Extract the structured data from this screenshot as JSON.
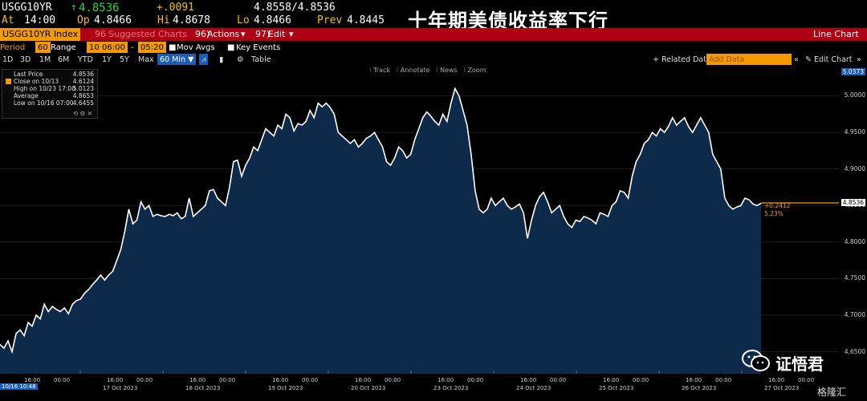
{
  "quote": {
    "symbol": "USGG10YR",
    "last": "4.8536",
    "change": "+.0091",
    "bid_ask": "4.8558/4.8536",
    "at_label": "At",
    "at_time": "14:00",
    "op_label": "Op",
    "open": "4.8466",
    "hi_label": "Hi",
    "high": "4.8678",
    "lo_label": "Lo",
    "low": "4.8466",
    "prev_label": "Prev",
    "prev": "4.8445"
  },
  "headline": "十年期美债收益率下行",
  "toolbar": {
    "index_label": "USGG10YR Index",
    "suggested": "Suggested Charts",
    "suggested_num": "96",
    "actions_num": "96)",
    "actions": "Actions",
    "edit_num": "97)",
    "edit": "Edit",
    "chart_type": "Line Chart"
  },
  "settings": {
    "period_label": "Period",
    "period_value": "60",
    "range_label": "Range",
    "range_value": "10",
    "time_from": "06:00",
    "time_to": "05:20",
    "mov_avgs": "Mov Avgs",
    "key_events": "Key Events"
  },
  "ranges": [
    "1D",
    "3D",
    "1M",
    "6M",
    "YTD",
    "1Y",
    "5Y",
    "Max"
  ],
  "interval": "60 Min",
  "table_label": "Table",
  "related_data": "+ Related Data",
  "add_data": "Add Data",
  "edit_chart": "Edit Chart",
  "chart_tools": [
    "Track",
    "Annotate",
    "News",
    "Zoom"
  ],
  "legend": [
    {
      "label": "Last Price",
      "value": "4.8536"
    },
    {
      "label": "Close on 10/13",
      "value": "4.6124"
    },
    {
      "label": "High on 10/23 17:00",
      "value": "5.0123"
    },
    {
      "label": "Average",
      "value": "4.8653"
    },
    {
      "label": "Low on 10/16 07:00",
      "value": "4.6455"
    }
  ],
  "last_price_tag": "4.8536",
  "top_tag": "5.0373",
  "change_annotation": "+0.2412",
  "change_pct": "5.23%",
  "cursor_date": "10/16 10:48",
  "watermark": "证悟君",
  "brand": "格隆汇",
  "chart_data": {
    "type": "area",
    "ylim": [
      4.62,
      5.04
    ],
    "yticks": [
      4.65,
      4.7,
      4.75,
      4.8,
      4.85,
      4.9,
      4.95,
      5.0
    ],
    "ytick_labels": [
      "4.6500",
      "4.7000",
      "4.7500",
      "4.8000",
      "4.8500",
      "4.9000",
      "4.9500",
      "5.0000"
    ],
    "date_labels": [
      "17 Oct 2023",
      "18 Oct 2023",
      "19 Oct 2023",
      "20 Oct 2023",
      "23 Oct 2023",
      "24 Oct 2023",
      "25 Oct 2023",
      "26 Oct 2023",
      "27 Oct 2023"
    ],
    "time_labels": [
      "16:00",
      "00:00",
      "16:00",
      "00:00",
      "16:00",
      "00:00",
      "16:00",
      "00:00",
      "16:00",
      "00:00",
      "16:00",
      "00:00",
      "16:00",
      "00:00",
      "16:00",
      "00:00",
      "16:00",
      "00:00",
      "16:00",
      "00:00"
    ],
    "values": [
      4.66,
      4.655,
      4.665,
      4.65,
      4.675,
      4.68,
      4.672,
      4.69,
      4.685,
      4.7,
      4.695,
      4.715,
      4.705,
      4.712,
      4.708,
      4.705,
      4.71,
      4.702,
      4.715,
      4.72,
      4.722,
      4.73,
      4.735,
      4.742,
      4.748,
      4.755,
      4.748,
      4.755,
      4.76,
      4.775,
      4.79,
      4.815,
      4.845,
      4.825,
      4.83,
      4.855,
      4.845,
      4.85,
      4.835,
      4.838,
      4.836,
      4.835,
      4.838,
      4.836,
      4.84,
      4.832,
      4.835,
      4.86,
      4.835,
      4.84,
      4.845,
      4.85,
      4.87,
      4.872,
      4.86,
      4.855,
      4.85,
      4.875,
      4.91,
      4.912,
      4.89,
      4.905,
      4.915,
      4.93,
      4.925,
      4.94,
      4.955,
      4.95,
      4.945,
      4.96,
      4.955,
      4.975,
      4.97,
      4.952,
      4.962,
      4.96,
      4.965,
      4.98,
      4.97,
      4.99,
      4.985,
      4.99,
      4.984,
      4.975,
      4.95,
      4.945,
      4.94,
      4.935,
      4.94,
      4.93,
      4.935,
      4.942,
      4.945,
      4.95,
      4.94,
      4.93,
      4.91,
      4.905,
      4.915,
      4.93,
      4.925,
      4.915,
      4.92,
      4.94,
      4.955,
      4.97,
      4.978,
      4.972,
      4.965,
      4.96,
      4.975,
      4.965,
      4.99,
      5.01,
      5.0,
      4.98,
      4.96,
      4.92,
      4.87,
      4.845,
      4.84,
      4.845,
      4.86,
      4.85,
      4.855,
      4.86,
      4.85,
      4.845,
      4.848,
      4.852,
      4.84,
      4.805,
      4.83,
      4.85,
      4.862,
      4.868,
      4.855,
      4.84,
      4.845,
      4.85,
      4.835,
      4.825,
      4.82,
      4.83,
      4.828,
      4.835,
      4.833,
      4.83,
      4.825,
      4.84,
      4.838,
      4.835,
      4.85,
      4.855,
      4.87,
      4.868,
      4.86,
      4.89,
      4.91,
      4.92,
      4.935,
      4.94,
      4.95,
      4.945,
      4.955,
      4.95,
      4.958,
      4.97,
      4.96,
      4.965,
      4.97,
      4.958,
      4.95,
      4.96,
      4.97,
      4.96,
      4.95,
      4.92,
      4.91,
      4.9,
      4.86,
      4.85,
      4.845,
      4.848,
      4.85,
      4.86,
      4.858,
      4.852,
      4.85,
      4.853
    ],
    "last_value": 4.8536
  }
}
